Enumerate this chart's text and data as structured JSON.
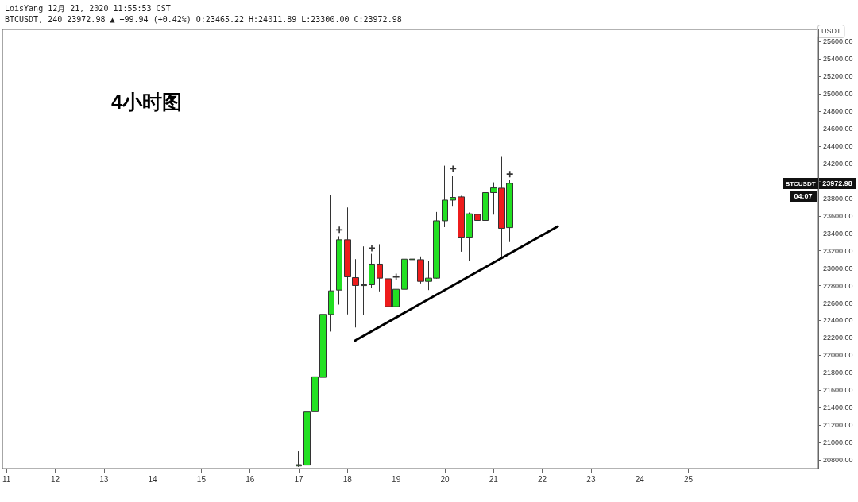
{
  "chart_data": {
    "type": "candlestick",
    "title": "4小时图",
    "ylabel": "USDT",
    "annotations": [
      "LoisYang 12月 21, 2020 11:55:53 CST",
      "BTCUSDT, 240 23972.98 ▲ +99.94 (+0.42%) O:23465.22 H:24011.89 L:23300.00 C:23972.98",
      "BTCUSDT",
      "23972.98",
      "04:07"
    ],
    "xlim": [
      "2020-12-10T22:00",
      "2020-12-27T16:00"
    ],
    "xticks": [
      {
        "value": "2020-12-11T00:00",
        "label": "11"
      },
      {
        "value": "2020-12-12T00:00",
        "label": "12"
      },
      {
        "value": "2020-12-13T00:00",
        "label": "13"
      },
      {
        "value": "2020-12-14T00:00",
        "label": "14"
      },
      {
        "value": "2020-12-15T00:00",
        "label": "15"
      },
      {
        "value": "2020-12-16T00:00",
        "label": "16"
      },
      {
        "value": "2020-12-17T00:00",
        "label": "17"
      },
      {
        "value": "2020-12-18T00:00",
        "label": "18"
      },
      {
        "value": "2020-12-19T00:00",
        "label": "19"
      },
      {
        "value": "2020-12-20T00:00",
        "label": "20"
      },
      {
        "value": "2020-12-21T00:00",
        "label": "21"
      },
      {
        "value": "2020-12-22T00:00",
        "label": "22"
      },
      {
        "value": "2020-12-23T00:00",
        "label": "23"
      },
      {
        "value": "2020-12-24T00:00",
        "label": "24"
      },
      {
        "value": "2020-12-25T00:00",
        "label": "25"
      }
    ],
    "ylim": [
      20700,
      25740
    ],
    "yticks": [
      {
        "value": 20800,
        "label": "20800.00"
      },
      {
        "value": 21000,
        "label": "21000.00"
      },
      {
        "value": 21200,
        "label": "21200.00"
      },
      {
        "value": 21400,
        "label": "21400.00"
      },
      {
        "value": 21600,
        "label": "21600.00"
      },
      {
        "value": 21800,
        "label": "21800.00"
      },
      {
        "value": 22000,
        "label": "22000.00"
      },
      {
        "value": 22200,
        "label": "22200.00"
      },
      {
        "value": 22400,
        "label": "22400.00"
      },
      {
        "value": 22600,
        "label": "22600.00"
      },
      {
        "value": 22800,
        "label": "22800.00"
      },
      {
        "value": 23000,
        "label": "23000.00"
      },
      {
        "value": 23200,
        "label": "23200.00"
      },
      {
        "value": 23400,
        "label": "23400.00"
      },
      {
        "value": 23600,
        "label": "23600.00"
      },
      {
        "value": 23800,
        "label": "23800.00"
      },
      {
        "value": 24000,
        "label": null
      },
      {
        "value": 24200,
        "label": "24200.00"
      },
      {
        "value": 24400,
        "label": "24400.00"
      },
      {
        "value": 24600,
        "label": "24600.00"
      },
      {
        "value": 24800,
        "label": "24800.00"
      },
      {
        "value": 25000,
        "label": "25000.00"
      },
      {
        "value": 25200,
        "label": "25200.00"
      },
      {
        "value": 25400,
        "label": "25400.00"
      },
      {
        "value": 25600,
        "label": "25600.00"
      }
    ],
    "grid": false,
    "series": [
      {
        "type": "line",
        "color": "#000000",
        "marker": "none",
        "x": [
          "2020-12-18T03:49",
          "2020-12-22T07:41"
        ],
        "values": [
          22170,
          23480
        ]
      },
      {
        "type": "scatter",
        "color": "#000000",
        "marker": "cross",
        "x": [
          "2020-12-17T20:00",
          "2020-12-18T12:00",
          "2020-12-19T00:00",
          "2020-12-20T04:00",
          "2020-12-21T08:00"
        ],
        "values": [
          23440,
          23230,
          22900,
          24140,
          24080
        ]
      },
      {
        "x": [
          "2020-12-17T00:00",
          "2020-12-17T04:00",
          "2020-12-17T08:00",
          "2020-12-17T12:00",
          "2020-12-17T16:00",
          "2020-12-17T20:00",
          "2020-12-18T00:00",
          "2020-12-18T04:00",
          "2020-12-18T08:00",
          "2020-12-18T12:00",
          "2020-12-18T16:00",
          "2020-12-18T20:00",
          "2020-12-19T00:00",
          "2020-12-19T04:00",
          "2020-12-19T08:00",
          "2020-12-19T12:00",
          "2020-12-19T16:00",
          "2020-12-19T20:00",
          "2020-12-20T00:00",
          "2020-12-20T04:00",
          "2020-12-20T08:00",
          "2020-12-20T12:00",
          "2020-12-20T16:00",
          "2020-12-20T20:00",
          "2020-12-21T00:00",
          "2020-12-21T04:00",
          "2020-12-21T08:00"
        ],
        "ohlc": [
          [
            20730,
            20900,
            20720,
            20745
          ],
          [
            20740,
            21565,
            20730,
            21350
          ],
          [
            21353,
            22173,
            21237,
            21754
          ],
          [
            21747,
            22480,
            21740,
            22470
          ],
          [
            22470,
            23842,
            22273,
            22740
          ],
          [
            22749,
            23366,
            22582,
            23326
          ],
          [
            23326,
            23696,
            22470,
            22901
          ],
          [
            22892,
            23104,
            22320,
            22801
          ],
          [
            22800,
            23250,
            22461,
            22810
          ],
          [
            22810,
            23165,
            22770,
            23047
          ],
          [
            23047,
            23275,
            22734,
            22886
          ],
          [
            22879,
            23062,
            22369,
            22558
          ],
          [
            22558,
            22825,
            22446,
            22758
          ],
          [
            22758,
            23144,
            22658,
            23104
          ],
          [
            23098,
            23220,
            22892,
            23105
          ],
          [
            23098,
            23135,
            22825,
            22849
          ],
          [
            22849,
            23083,
            22749,
            22886
          ],
          [
            22886,
            23645,
            22880,
            23544
          ],
          [
            23544,
            24176,
            23471,
            23781
          ],
          [
            23781,
            24054,
            23715,
            23812
          ],
          [
            23818,
            23830,
            23189,
            23348
          ],
          [
            23348,
            23639,
            23083,
            23624
          ],
          [
            23617,
            23781,
            23350,
            23548
          ],
          [
            23548,
            23918,
            23296,
            23867
          ],
          [
            23867,
            23985,
            23614,
            23921
          ],
          [
            23918,
            24277,
            23129,
            23457
          ],
          [
            23465.22,
            24011.89,
            23300,
            23972.98
          ]
        ],
        "colors": [
          "#22e022",
          "#22e022",
          "#22e022",
          "#22e022",
          "#22e022",
          "#22e022",
          "#ee1c1c",
          "#ee1c1c",
          "#22e022",
          "#22e022",
          "#ee1c1c",
          "#ee1c1c",
          "#22e022",
          "#22e022",
          "#22e022",
          "#ee1c1c",
          "#22e022",
          "#22e022",
          "#22e022",
          "#22e022",
          "#ee1c1c",
          "#22e022",
          "#ee1c1c",
          "#22e022",
          "#22e022",
          "#ee1c1c",
          "#22e022"
        ]
      }
    ]
  }
}
